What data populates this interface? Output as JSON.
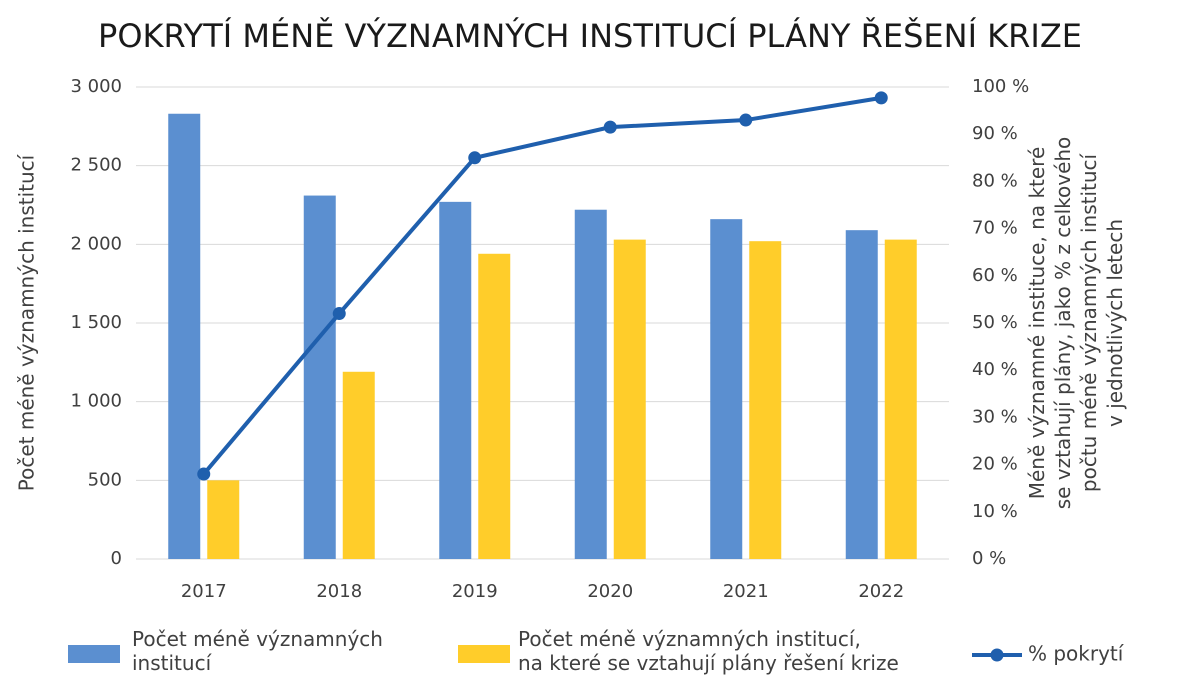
{
  "chart_data": {
    "type": "bar_line",
    "title": "POKRYTÍ MÉNĚ VÝZNAMNÝCH INSTITUCÍ PLÁNY ŘEŠENÍ KRIZE",
    "y_label": "Počet méně významných institucí",
    "y2_label": [
      "Méně významné instituce, na které",
      "se vztahují plány, jako % z celkového",
      "počtu méně významných institucí",
      "v jednotlivých letech"
    ],
    "categories": [
      "2017",
      "2018",
      "2019",
      "2020",
      "2021",
      "2022"
    ],
    "series": [
      {
        "name": "Počet méně významných\ninstitucí",
        "type": "bar",
        "color": "#5b8fd0",
        "values": [
          2830,
          2310,
          2270,
          2220,
          2160,
          2090
        ]
      },
      {
        "name": "Počet méně významných institucí,\nna které se vztahují plány řešení krize",
        "type": "bar",
        "color": "#ffcd2a",
        "values": [
          500,
          1190,
          1940,
          2030,
          2020,
          2030
        ]
      },
      {
        "name": "% pokrytí",
        "type": "line",
        "axis": "y2",
        "color": "#1f5fad",
        "values": [
          18,
          52,
          85,
          91.5,
          93,
          97.7
        ]
      }
    ],
    "ylim": [
      0,
      3000
    ],
    "yticks": [
      0,
      500,
      {
        "value": 1000,
        "label": "1 000"
      },
      {
        "value": 1500,
        "label": "1 500"
      },
      {
        "value": 2000,
        "label": "2 000"
      },
      {
        "value": 2500,
        "label": "2 500"
      },
      {
        "value": 3000,
        "label": "3 000"
      }
    ],
    "y2lim": [
      0,
      100
    ],
    "y2ticks": [
      {
        "value": 0,
        "label": "0 %"
      },
      {
        "value": 10,
        "label": "10 %"
      },
      {
        "value": 20,
        "label": "20 %"
      },
      {
        "value": 30,
        "label": "30 %"
      },
      {
        "value": 40,
        "label": "40 %"
      },
      {
        "value": 50,
        "label": "50 %"
      },
      {
        "value": 60,
        "label": "60 %"
      },
      {
        "value": 70,
        "label": "70 %"
      },
      {
        "value": 80,
        "label": "80 %"
      },
      {
        "value": 90,
        "label": "90 %"
      },
      {
        "value": 100,
        "label": "100 %"
      }
    ],
    "grid": true,
    "legend": "bottom"
  }
}
